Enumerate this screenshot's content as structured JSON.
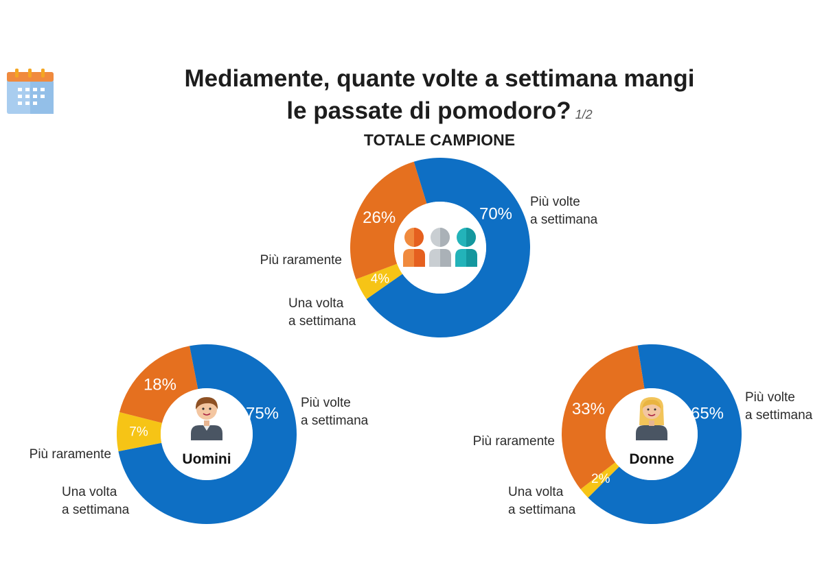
{
  "title": {
    "line1": "Mediamente, quante volte a settimana mangi",
    "line2": "le passate di pomodoro?",
    "page_indicator": "1/2"
  },
  "subtitle": "TOTALE CAMPIONE",
  "icons": {
    "header": "calendar-icon"
  },
  "colors": {
    "blue": "#0e6fc4",
    "orange": "#e5701f",
    "yellow": "#f6c416"
  },
  "chart_data": [
    {
      "type": "pie",
      "name": "TOTALE CAMPIONE",
      "center_icon": "group-people-icon",
      "categories": [
        "Più volte a settimana",
        "Una volta a settimana",
        "Più raramente"
      ],
      "values": [
        70,
        26,
        4
      ],
      "value_labels": [
        "70%",
        "26%",
        "4%"
      ],
      "colors": [
        "#0e6fc4",
        "#e5701f",
        "#f6c416"
      ],
      "labels": {
        "piu_volte": {
          "line1": "Più volte",
          "line2": "a settimana"
        },
        "una_volta": {
          "line1": "Una volta",
          "line2": "a settimana"
        },
        "raramente": "Più raramente"
      }
    },
    {
      "type": "pie",
      "name": "Uomini",
      "center_label": "Uomini",
      "center_icon": "man-avatar-icon",
      "categories": [
        "Più volte a settimana",
        "Una volta a settimana",
        "Più raramente"
      ],
      "values": [
        75,
        18,
        7
      ],
      "value_labels": [
        "75%",
        "18%",
        "7%"
      ],
      "colors": [
        "#0e6fc4",
        "#e5701f",
        "#f6c416"
      ],
      "labels": {
        "piu_volte": {
          "line1": "Più volte",
          "line2": "a settimana"
        },
        "una_volta": {
          "line1": "Una volta",
          "line2": "a settimana"
        },
        "raramente": "Più raramente"
      }
    },
    {
      "type": "pie",
      "name": "Donne",
      "center_label": "Donne",
      "center_icon": "woman-avatar-icon",
      "categories": [
        "Più volte a settimana",
        "Una volta a settimana",
        "Più raramente"
      ],
      "values": [
        65,
        33,
        2
      ],
      "value_labels": [
        "65%",
        "33%",
        "2%"
      ],
      "colors": [
        "#0e6fc4",
        "#e5701f",
        "#f6c416"
      ],
      "labels": {
        "piu_volte": {
          "line1": "Più volte",
          "line2": "a settimana"
        },
        "una_volta": {
          "line1": "Una volta",
          "line2": "a settimana"
        },
        "raramente": "Più raramente"
      }
    }
  ]
}
